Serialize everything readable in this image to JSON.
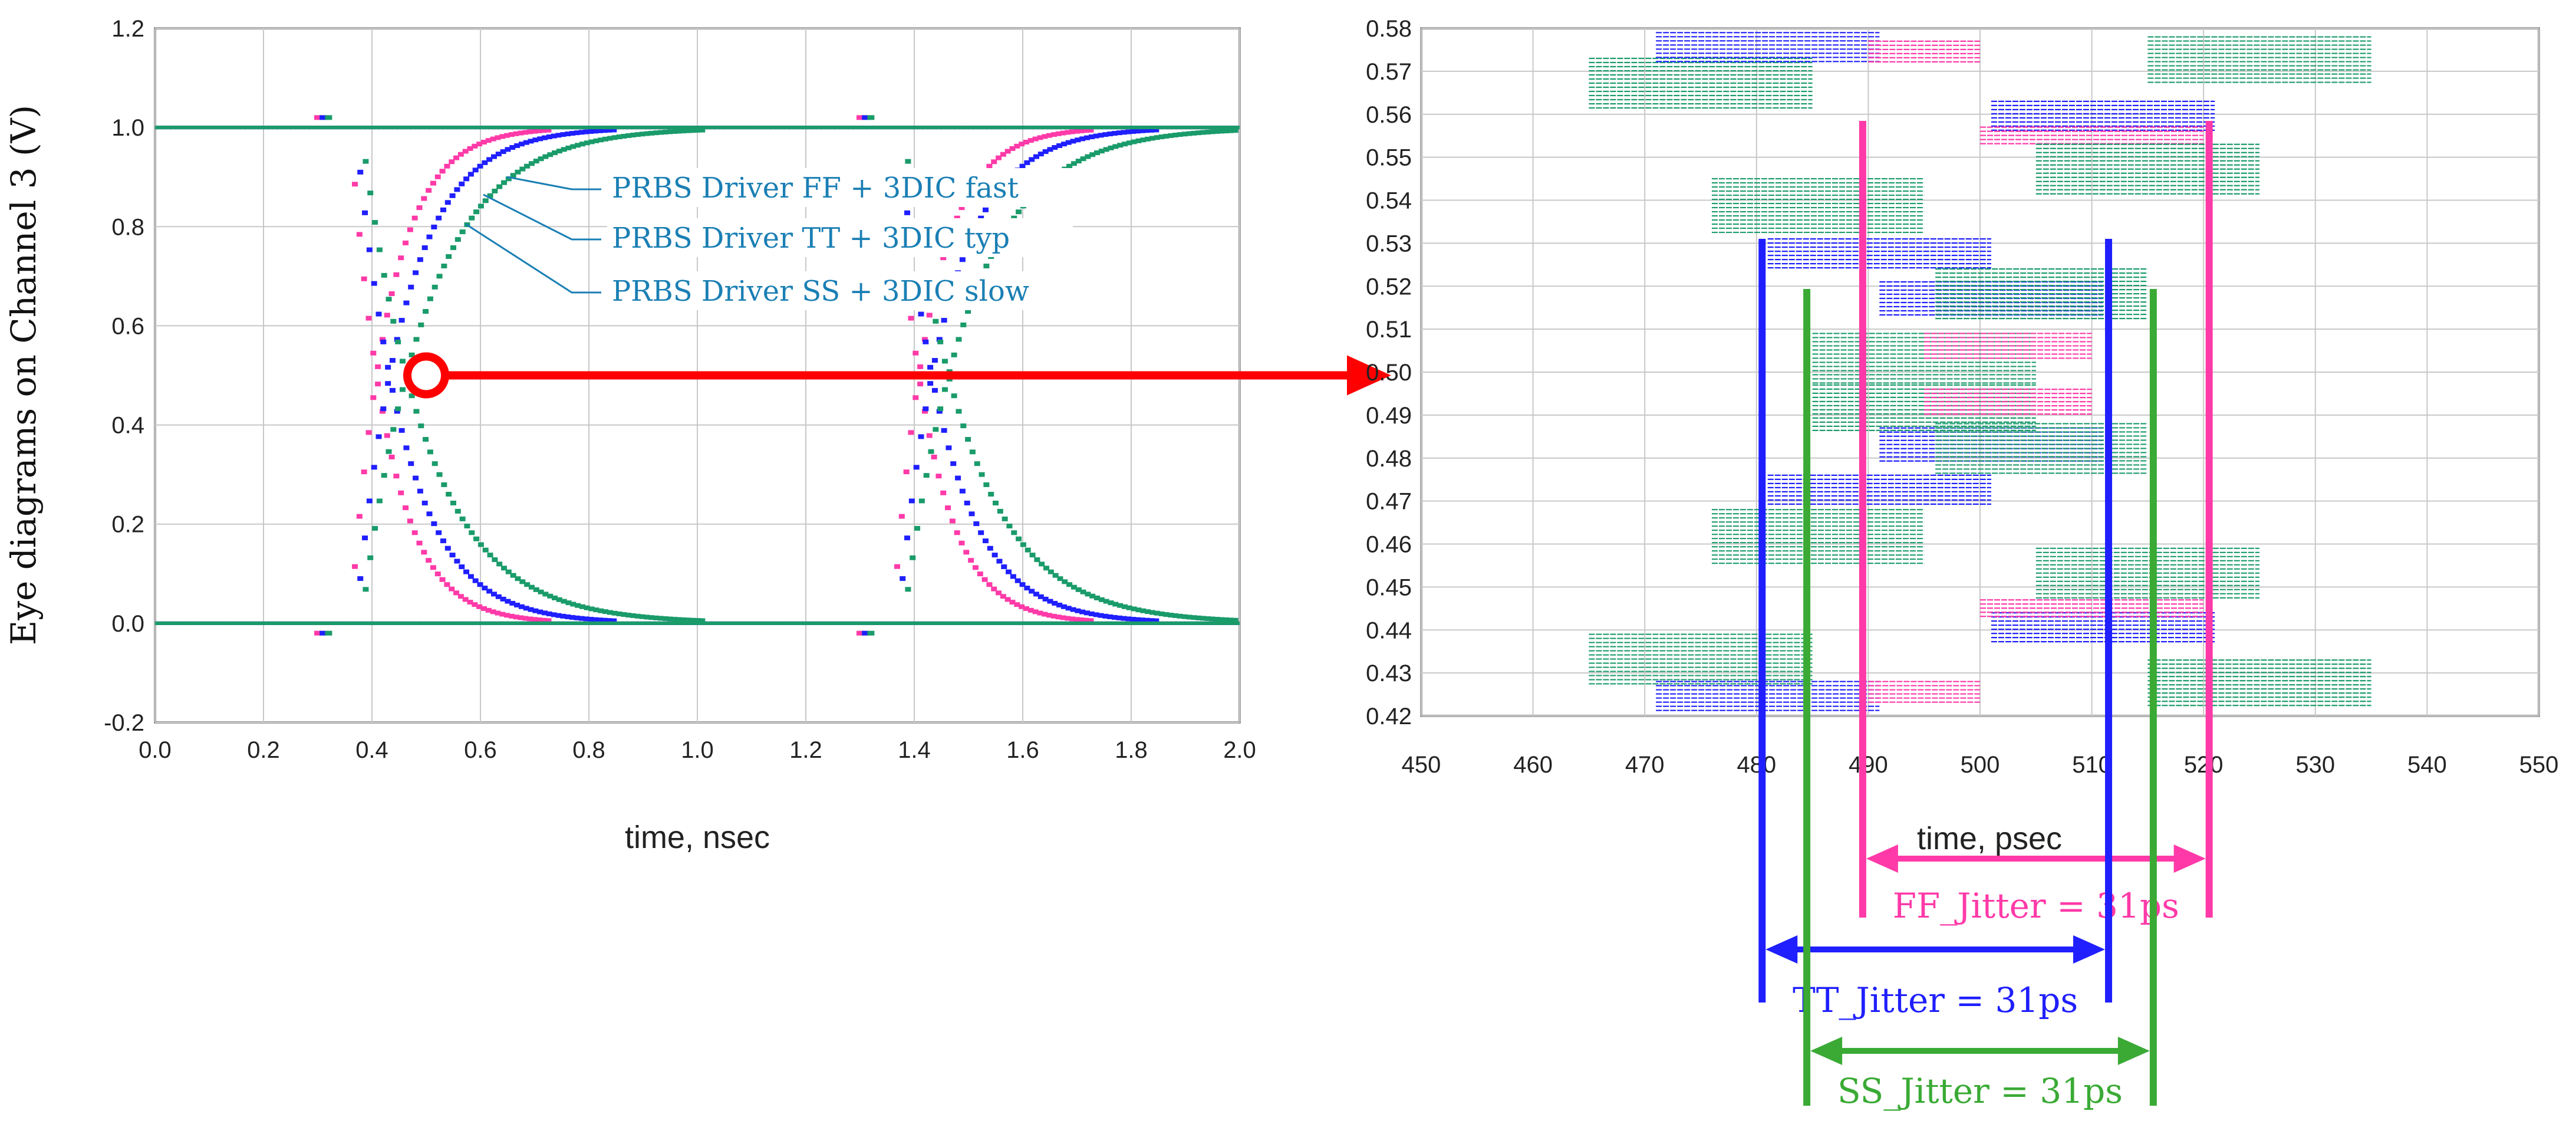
{
  "chart_data": [
    {
      "type": "scatter",
      "title": "",
      "xlabel": "time, nsec",
      "ylabel": "Eye diagrams on Channel 3 (V)",
      "xlim": [
        0.0,
        2.0
      ],
      "ylim": [
        -0.2,
        1.2
      ],
      "xticks": [
        "0.0",
        "0.2",
        "0.4",
        "0.6",
        "0.8",
        "1.0",
        "1.2",
        "1.4",
        "1.6",
        "1.8",
        "2.0"
      ],
      "yticks": [
        "-0.2",
        "0.0",
        "0.2",
        "0.4",
        "0.6",
        "0.8",
        "1.0",
        "1.2"
      ],
      "grid": true,
      "series": [
        {
          "name": "PRBS Driver FF + 3DIC fast",
          "color": "#ff3aa8",
          "crossings": [
            0.49,
            1.49
          ],
          "rise_tau": 0.07
        },
        {
          "name": "PRBS Driver TT + 3DIC typ",
          "color": "#1f1fff",
          "crossings": [
            0.5,
            1.5
          ],
          "rise_tau": 0.09
        },
        {
          "name": "PRBS Driver SS + 3DIC slow",
          "color": "#1a9b6a",
          "crossings": [
            0.51,
            1.51
          ],
          "rise_tau": 0.12
        }
      ],
      "annotation": {
        "marker": "circle",
        "at": [
          0.5,
          0.5
        ],
        "arrow_to": "zoom-panel"
      }
    },
    {
      "type": "scatter",
      "title": "",
      "xlabel": "time, psec",
      "ylabel": "",
      "xlim": [
        450,
        550
      ],
      "ylim": [
        0.42,
        0.58
      ],
      "xticks": [
        "450",
        "460",
        "470",
        "480",
        "490",
        "500",
        "510",
        "520",
        "530",
        "540",
        "550"
      ],
      "yticks": [
        "0.42",
        "0.43",
        "0.44",
        "0.45",
        "0.46",
        "0.47",
        "0.48",
        "0.49",
        "0.50",
        "0.51",
        "0.52",
        "0.53",
        "0.54",
        "0.55",
        "0.56",
        "0.57",
        "0.58"
      ],
      "grid": true,
      "bands": [
        {
          "series": "SS",
          "color": "#1a9b6a",
          "x": [
            465,
            485
          ],
          "y": [
            0.561,
            0.573
          ]
        },
        {
          "series": "TT",
          "color": "#1f1fff",
          "x": [
            471,
            491
          ],
          "y": [
            0.572,
            0.579
          ]
        },
        {
          "series": "FF",
          "color": "#ff3aa8",
          "x": [
            490,
            500
          ],
          "y": [
            0.572,
            0.577
          ]
        },
        {
          "series": "SS",
          "color": "#1a9b6a",
          "x": [
            515,
            535
          ],
          "y": [
            0.567,
            0.578
          ]
        },
        {
          "series": "TT",
          "color": "#1f1fff",
          "x": [
            501,
            521
          ],
          "y": [
            0.556,
            0.563
          ]
        },
        {
          "series": "FF",
          "color": "#ff3aa8",
          "x": [
            500,
            520
          ],
          "y": [
            0.553,
            0.557
          ]
        },
        {
          "series": "SS",
          "color": "#1a9b6a",
          "x": [
            505,
            525
          ],
          "y": [
            0.541,
            0.553
          ]
        },
        {
          "series": "SS",
          "color": "#1a9b6a",
          "x": [
            476,
            495
          ],
          "y": [
            0.532,
            0.545
          ]
        },
        {
          "series": "TT",
          "color": "#1f1fff",
          "x": [
            481,
            501
          ],
          "y": [
            0.524,
            0.531
          ]
        },
        {
          "series": "TT",
          "color": "#1f1fff",
          "x": [
            491,
            511
          ],
          "y": [
            0.513,
            0.521
          ]
        },
        {
          "series": "SS",
          "color": "#1a9b6a",
          "x": [
            496,
            515
          ],
          "y": [
            0.512,
            0.524
          ]
        },
        {
          "series": "SS",
          "color": "#1a9b6a",
          "x": [
            485,
            505
          ],
          "y": [
            0.497,
            0.509
          ]
        },
        {
          "series": "FF",
          "color": "#ff3aa8",
          "x": [
            495,
            510
          ],
          "y": [
            0.503,
            0.509
          ]
        },
        {
          "series": "SS",
          "color": "#1a9b6a",
          "x": [
            485,
            505
          ],
          "y": [
            0.486,
            0.497
          ]
        },
        {
          "series": "FF",
          "color": "#ff3aa8",
          "x": [
            495,
            510
          ],
          "y": [
            0.49,
            0.496
          ]
        },
        {
          "series": "TT",
          "color": "#1f1fff",
          "x": [
            491,
            511
          ],
          "y": [
            0.479,
            0.487
          ]
        },
        {
          "series": "SS",
          "color": "#1a9b6a",
          "x": [
            496,
            515
          ],
          "y": [
            0.476,
            0.488
          ]
        },
        {
          "series": "TT",
          "color": "#1f1fff",
          "x": [
            481,
            501
          ],
          "y": [
            0.469,
            0.476
          ]
        },
        {
          "series": "SS",
          "color": "#1a9b6a",
          "x": [
            476,
            495
          ],
          "y": [
            0.455,
            0.468
          ]
        },
        {
          "series": "SS",
          "color": "#1a9b6a",
          "x": [
            505,
            525
          ],
          "y": [
            0.447,
            0.459
          ]
        },
        {
          "series": "TT",
          "color": "#1f1fff",
          "x": [
            501,
            521
          ],
          "y": [
            0.437,
            0.444
          ]
        },
        {
          "series": "FF",
          "color": "#ff3aa8",
          "x": [
            500,
            520
          ],
          "y": [
            0.443,
            0.447
          ]
        },
        {
          "series": "SS",
          "color": "#1a9b6a",
          "x": [
            465,
            485
          ],
          "y": [
            0.427,
            0.439
          ]
        },
        {
          "series": "TT",
          "color": "#1f1fff",
          "x": [
            471,
            491
          ],
          "y": [
            0.421,
            0.428
          ]
        },
        {
          "series": "FF",
          "color": "#ff3aa8",
          "x": [
            490,
            500
          ],
          "y": [
            0.423,
            0.428
          ]
        },
        {
          "series": "SS",
          "color": "#1a9b6a",
          "x": [
            515,
            535
          ],
          "y": [
            0.422,
            0.433
          ]
        }
      ],
      "jitter": [
        {
          "label": "FF_Jitter = 31ps",
          "color": "#ff3aa8",
          "x": [
            489.5,
            520.5
          ]
        },
        {
          "label": "TT_Jitter = 31ps",
          "color": "#1f1fff",
          "x": [
            480.5,
            511.5
          ]
        },
        {
          "label": "SS_Jitter = 31ps",
          "color": "#3aaa35",
          "x": [
            484.5,
            515.5
          ]
        }
      ]
    }
  ],
  "colors": {
    "highlight": "#ff0000",
    "grid": "#c8c8c8"
  }
}
